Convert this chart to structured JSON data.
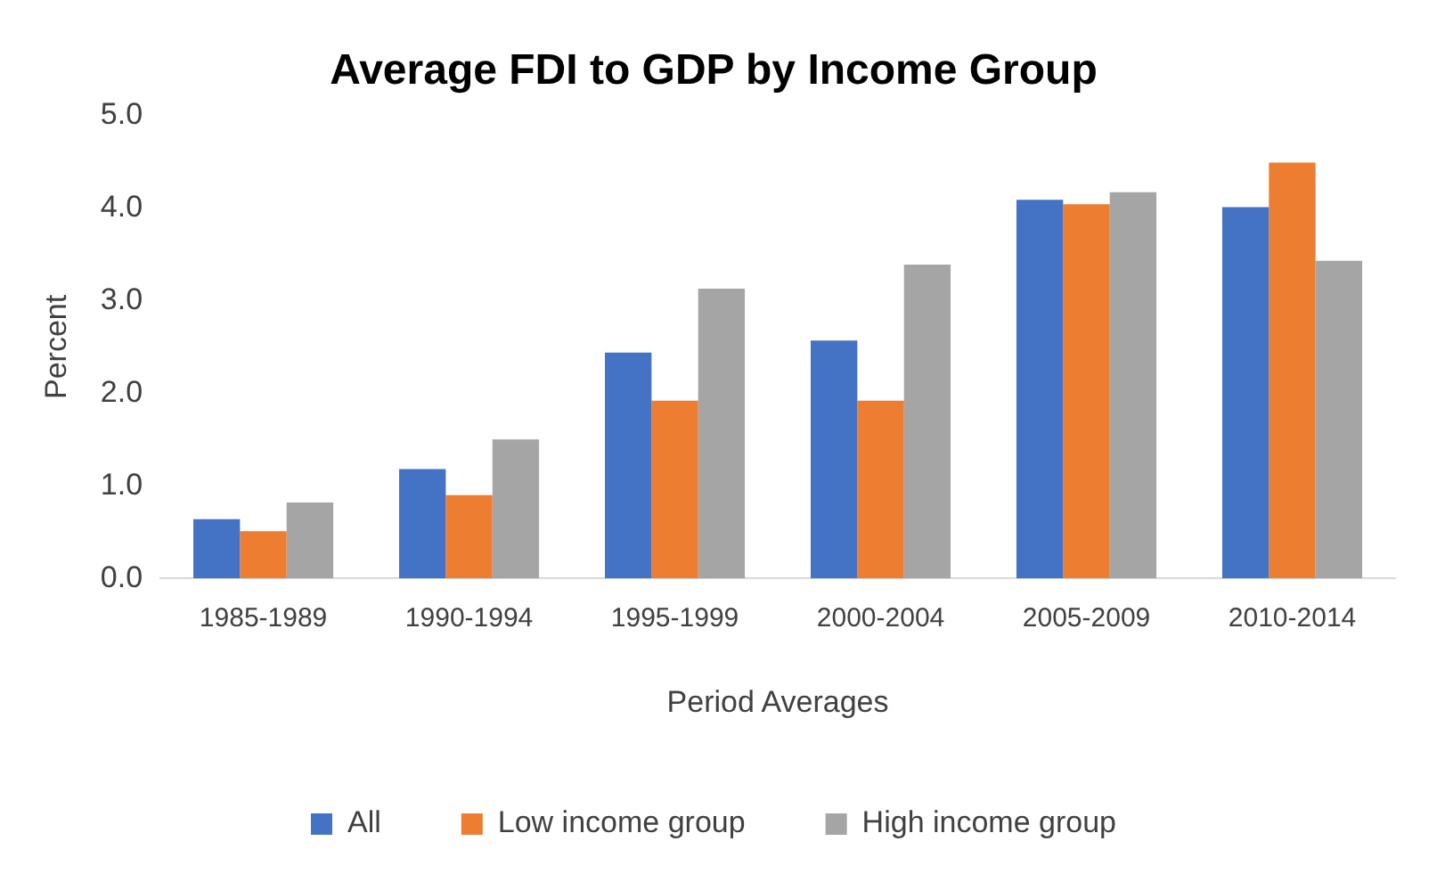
{
  "chart_data": {
    "type": "bar",
    "title": "Average FDI to GDP by Income Group",
    "xlabel": "Period Averages",
    "ylabel": "Percent",
    "categories": [
      "1985-1989",
      "1990-1994",
      "1995-1999",
      "2000-2004",
      "2005-2009",
      "2010-2014"
    ],
    "series": [
      {
        "name": "All",
        "color": "#4472c4",
        "values": [
          0.64,
          1.18,
          2.44,
          2.57,
          4.09,
          4.01
        ]
      },
      {
        "name": "Low income group",
        "color": "#ed7d31",
        "values": [
          0.51,
          0.9,
          1.92,
          1.92,
          4.04,
          4.49
        ]
      },
      {
        "name": "High income group",
        "color": "#a5a5a5",
        "values": [
          0.82,
          1.5,
          3.13,
          3.39,
          4.17,
          3.43
        ]
      }
    ],
    "ylim": [
      0,
      5
    ],
    "yticks": [
      {
        "value": 0,
        "label": "0.0"
      },
      {
        "value": 1,
        "label": "1.0"
      },
      {
        "value": 2,
        "label": "2.0"
      },
      {
        "value": 3,
        "label": "3.0"
      },
      {
        "value": 4,
        "label": "4.0"
      },
      {
        "value": 5,
        "label": "5.0"
      }
    ],
    "legend": "bottom"
  }
}
